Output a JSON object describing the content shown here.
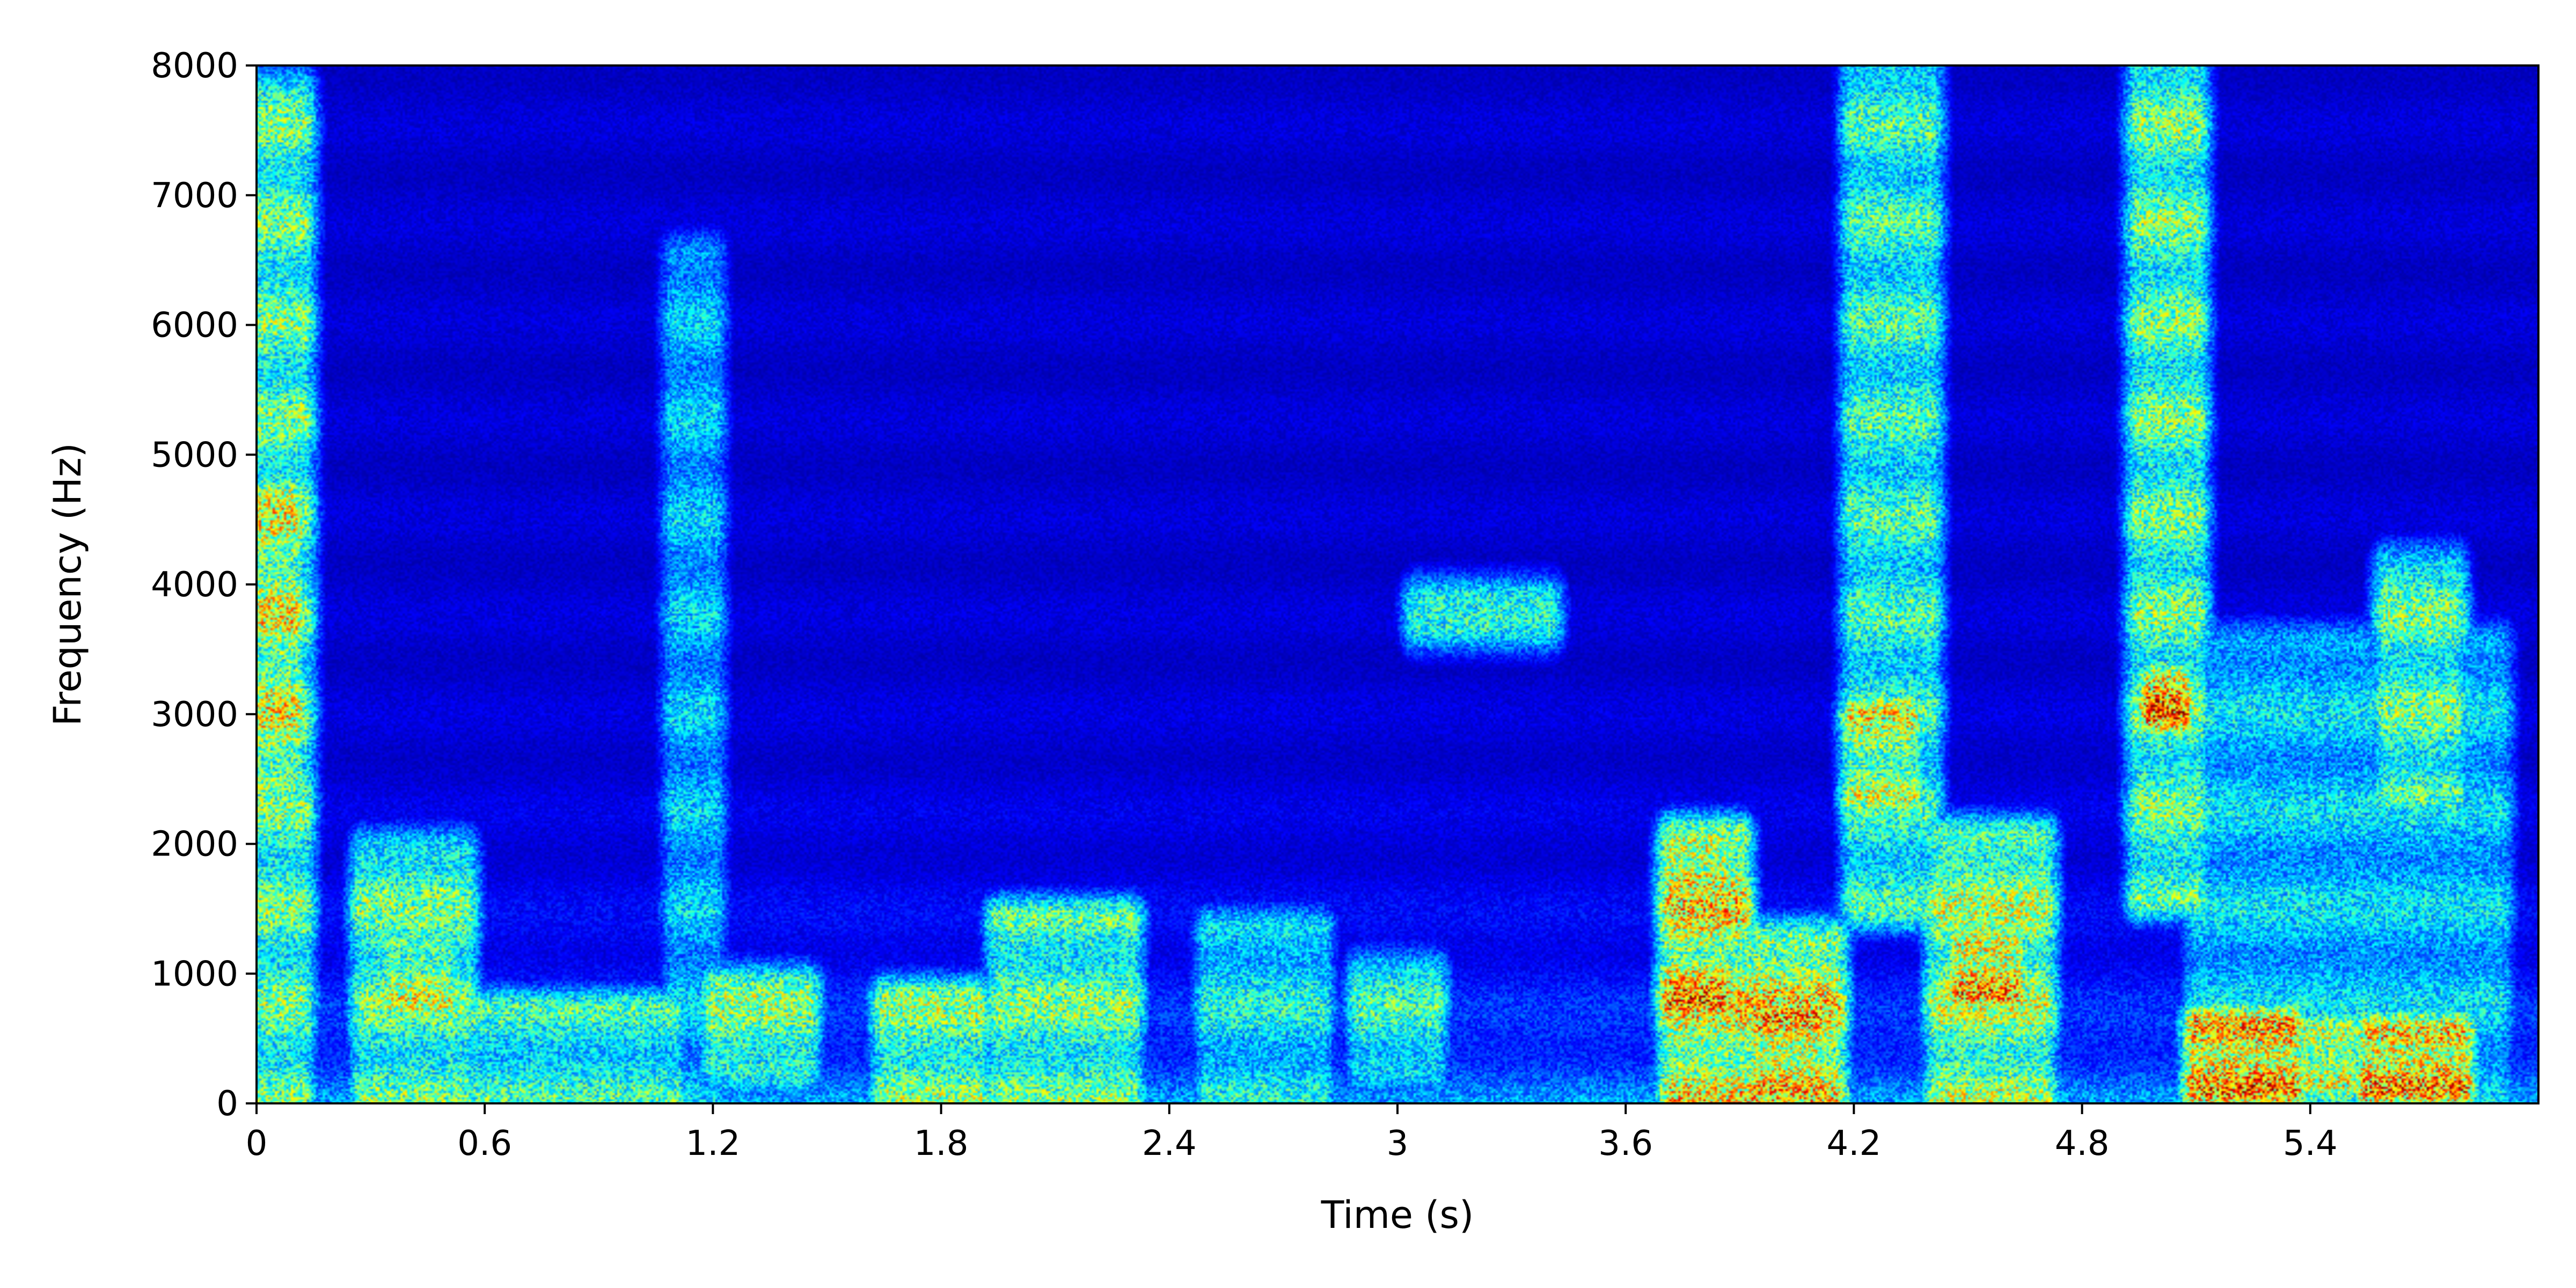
{
  "chart_data": {
    "type": "heatmap",
    "title": "",
    "xlabel": "Time (s)",
    "ylabel": "Frequency (Hz)",
    "xlim": [
      0,
      6.0
    ],
    "ylim": [
      0,
      8000
    ],
    "x_ticks": [
      0,
      0.6,
      1.2,
      1.8,
      2.4,
      3,
      3.6,
      4.2,
      4.8,
      5.4
    ],
    "x_tick_labels": [
      "0",
      "0.6",
      "1.2",
      "1.8",
      "2.4",
      "3",
      "3.6",
      "4.2",
      "4.8",
      "5.4"
    ],
    "y_ticks": [
      0,
      1000,
      2000,
      3000,
      4000,
      5000,
      6000,
      7000,
      8000
    ],
    "y_tick_labels": [
      "0",
      "1000",
      "2000",
      "3000",
      "4000",
      "5000",
      "6000",
      "7000",
      "8000"
    ],
    "colormap": "jet",
    "grid": false,
    "energy_regions": [
      {
        "t0": 0.0,
        "t1": 0.12,
        "f0": 0,
        "f1": 7800,
        "intensity": 0.55
      },
      {
        "t0": 0.0,
        "t1": 0.1,
        "f0": 2500,
        "f1": 4700,
        "intensity": 0.68
      },
      {
        "t0": 0.28,
        "t1": 0.55,
        "f0": 0,
        "f1": 1900,
        "intensity": 0.55
      },
      {
        "t0": 0.35,
        "t1": 0.5,
        "f0": 800,
        "f1": 1200,
        "intensity": 0.66
      },
      {
        "t0": 0.55,
        "t1": 1.1,
        "f0": 0,
        "f1": 700,
        "intensity": 0.5
      },
      {
        "t0": 1.1,
        "t1": 1.2,
        "f0": 0,
        "f1": 6500,
        "intensity": 0.38
      },
      {
        "t0": 1.2,
        "t1": 1.45,
        "f0": 300,
        "f1": 900,
        "intensity": 0.58
      },
      {
        "t0": 1.65,
        "t1": 1.9,
        "f0": 0,
        "f1": 800,
        "intensity": 0.58
      },
      {
        "t0": 1.95,
        "t1": 2.3,
        "f0": 0,
        "f1": 1400,
        "intensity": 0.55
      },
      {
        "t0": 2.5,
        "t1": 2.8,
        "f0": 0,
        "f1": 1300,
        "intensity": 0.45
      },
      {
        "t0": 2.9,
        "t1": 3.1,
        "f0": 300,
        "f1": 1000,
        "intensity": 0.5
      },
      {
        "t0": 3.05,
        "t1": 3.4,
        "f0": 3650,
        "f1": 3900,
        "intensity": 0.45
      },
      {
        "t0": 3.72,
        "t1": 3.9,
        "f0": 0,
        "f1": 2000,
        "intensity": 0.72
      },
      {
        "t0": 3.72,
        "t1": 3.85,
        "f0": 800,
        "f1": 1000,
        "intensity": 0.85
      },
      {
        "t0": 3.72,
        "t1": 3.85,
        "f0": 1750,
        "f1": 1950,
        "intensity": 0.82
      },
      {
        "t0": 3.9,
        "t1": 4.15,
        "f0": 0,
        "f1": 1200,
        "intensity": 0.72
      },
      {
        "t0": 3.95,
        "t1": 4.1,
        "f0": 150,
        "f1": 650,
        "intensity": 0.83
      },
      {
        "t0": 4.2,
        "t1": 4.4,
        "f0": 1500,
        "f1": 8000,
        "intensity": 0.5
      },
      {
        "t0": 4.2,
        "t1": 4.35,
        "f0": 2400,
        "f1": 3000,
        "intensity": 0.68
      },
      {
        "t0": 4.42,
        "t1": 4.7,
        "f0": 0,
        "f1": 2000,
        "intensity": 0.62
      },
      {
        "t0": 4.48,
        "t1": 4.62,
        "f0": 900,
        "f1": 1200,
        "intensity": 0.86
      },
      {
        "t0": 4.95,
        "t1": 5.1,
        "f0": 1600,
        "f1": 8000,
        "intensity": 0.55
      },
      {
        "t0": 4.98,
        "t1": 5.06,
        "f0": 3000,
        "f1": 3250,
        "intensity": 0.84
      },
      {
        "t0": 5.1,
        "t1": 5.35,
        "f0": 150,
        "f1": 550,
        "intensity": 0.9
      },
      {
        "t0": 5.35,
        "t1": 5.5,
        "f0": 200,
        "f1": 500,
        "intensity": 0.75
      },
      {
        "t0": 5.55,
        "t1": 5.8,
        "f0": 150,
        "f1": 500,
        "intensity": 0.88
      },
      {
        "t0": 5.6,
        "t1": 5.78,
        "f0": 2400,
        "f1": 4100,
        "intensity": 0.55
      },
      {
        "t0": 5.1,
        "t1": 5.9,
        "f0": 0,
        "f1": 3500,
        "intensity": 0.4
      }
    ]
  }
}
